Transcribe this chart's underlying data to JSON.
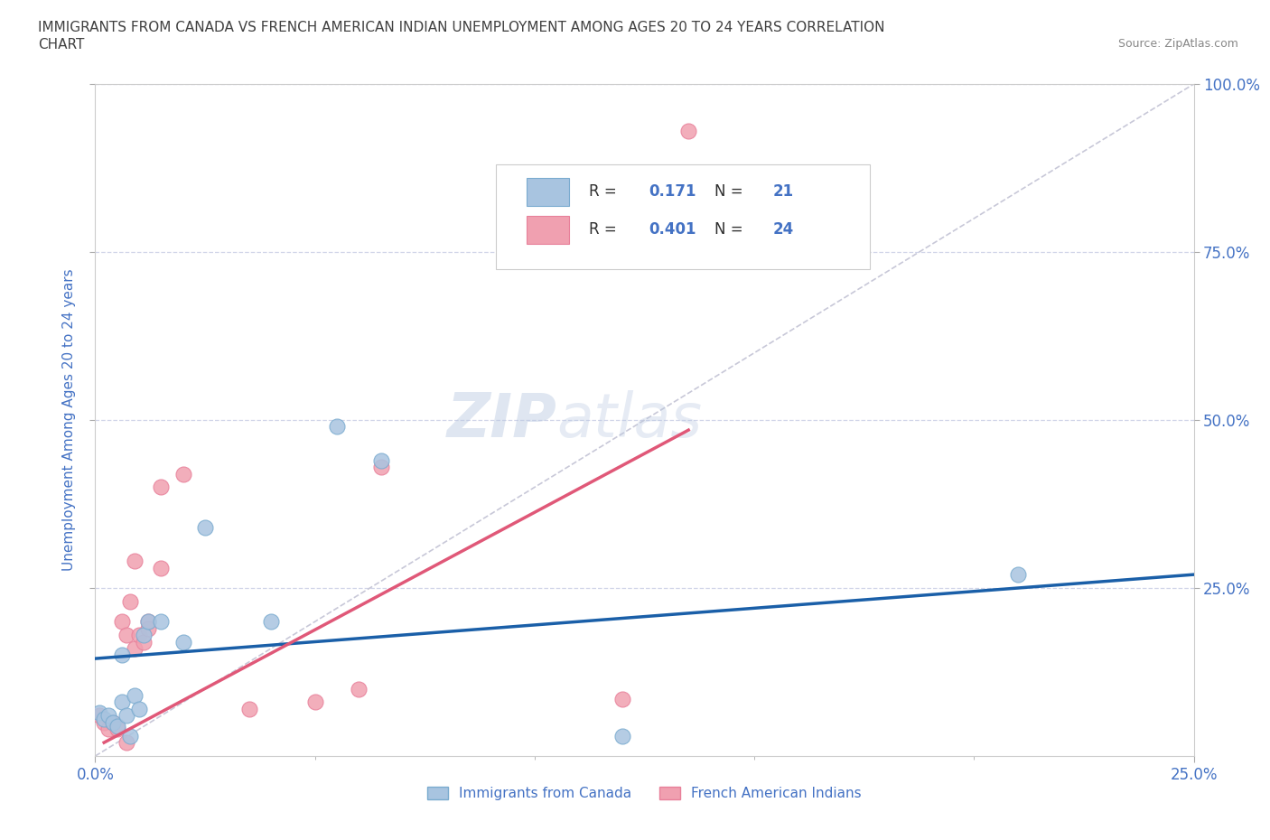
{
  "title_line1": "IMMIGRANTS FROM CANADA VS FRENCH AMERICAN INDIAN UNEMPLOYMENT AMONG AGES 20 TO 24 YEARS CORRELATION",
  "title_line2": "CHART",
  "source_text": "Source: ZipAtlas.com",
  "ylabel": "Unemployment Among Ages 20 to 24 years",
  "xlim": [
    0.0,
    0.25
  ],
  "ylim": [
    0.0,
    1.0
  ],
  "ytick_positions_right": [
    1.0,
    0.75,
    0.5,
    0.25
  ],
  "canada_R": 0.171,
  "canada_N": 21,
  "french_R": 0.401,
  "french_N": 24,
  "canada_color": "#a8c4e0",
  "french_color": "#f0a0b0",
  "canada_line_color": "#1a5fa8",
  "french_line_color": "#e05878",
  "diagonal_color": "#c8c8d8",
  "watermark_zip": "ZIP",
  "watermark_atlas": "atlas",
  "canada_points_x": [
    0.001,
    0.002,
    0.003,
    0.004,
    0.005,
    0.006,
    0.006,
    0.007,
    0.008,
    0.009,
    0.01,
    0.011,
    0.012,
    0.015,
    0.02,
    0.025,
    0.04,
    0.055,
    0.065,
    0.12,
    0.21
  ],
  "canada_points_y": [
    0.065,
    0.055,
    0.06,
    0.05,
    0.045,
    0.08,
    0.15,
    0.06,
    0.03,
    0.09,
    0.07,
    0.18,
    0.2,
    0.2,
    0.17,
    0.34,
    0.2,
    0.49,
    0.44,
    0.03,
    0.27
  ],
  "french_points_x": [
    0.001,
    0.002,
    0.003,
    0.004,
    0.005,
    0.006,
    0.007,
    0.007,
    0.008,
    0.009,
    0.009,
    0.01,
    0.011,
    0.012,
    0.012,
    0.015,
    0.015,
    0.02,
    0.035,
    0.05,
    0.06,
    0.065,
    0.12,
    0.135
  ],
  "french_points_y": [
    0.06,
    0.05,
    0.04,
    0.05,
    0.04,
    0.2,
    0.02,
    0.18,
    0.23,
    0.16,
    0.29,
    0.18,
    0.17,
    0.2,
    0.19,
    0.28,
    0.4,
    0.42,
    0.07,
    0.08,
    0.1,
    0.43,
    0.085,
    0.93
  ],
  "canada_line_x0": 0.0,
  "canada_line_y0": 0.145,
  "canada_line_x1": 0.25,
  "canada_line_y1": 0.27,
  "french_line_x0": 0.002,
  "french_line_y0": 0.02,
  "french_line_x1": 0.135,
  "french_line_y1": 0.485,
  "background_color": "#ffffff",
  "grid_color": "#d0d4e8",
  "title_color": "#404040",
  "axis_label_color": "#4472c4",
  "legend_label1": "Immigrants from Canada",
  "legend_label2": "French American Indians"
}
